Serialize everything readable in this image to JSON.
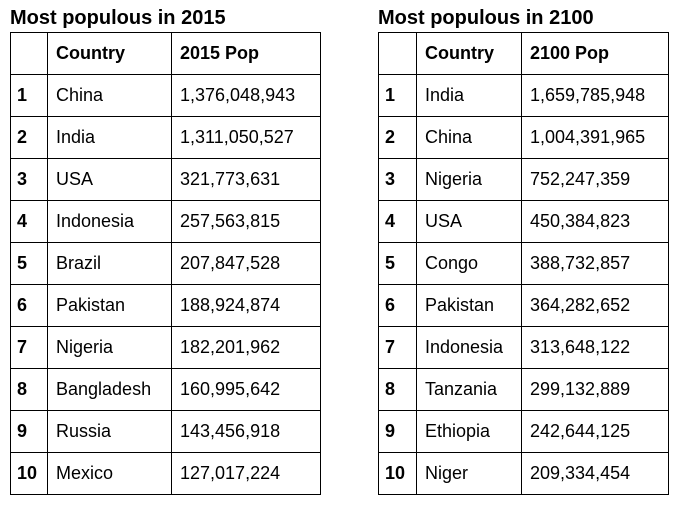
{
  "chart_data": [
    {
      "type": "table",
      "title": "Most populous in 2015",
      "columns": [
        "",
        "Country",
        "2015 Pop"
      ],
      "rows": [
        [
          "1",
          "China",
          "1,376,048,943"
        ],
        [
          "2",
          "India",
          "1,311,050,527"
        ],
        [
          "3",
          "USA",
          "321,773,631"
        ],
        [
          "4",
          "Indonesia",
          "257,563,815"
        ],
        [
          "5",
          "Brazil",
          "207,847,528"
        ],
        [
          "6",
          "Pakistan",
          "188,924,874"
        ],
        [
          "7",
          "Nigeria",
          "182,201,962"
        ],
        [
          "8",
          "Bangladesh",
          "160,995,642"
        ],
        [
          "9",
          "Russia",
          "143,456,918"
        ],
        [
          "10",
          "Mexico",
          "127,017,224"
        ]
      ]
    },
    {
      "type": "table",
      "title": "Most populous in 2100",
      "columns": [
        "",
        "Country",
        "2100 Pop"
      ],
      "rows": [
        [
          "1",
          "India",
          "1,659,785,948"
        ],
        [
          "2",
          "China",
          "1,004,391,965"
        ],
        [
          "3",
          "Nigeria",
          "752,247,359"
        ],
        [
          "4",
          "USA",
          "450,384,823"
        ],
        [
          "5",
          "Congo",
          "388,732,857"
        ],
        [
          "6",
          "Pakistan",
          "364,282,652"
        ],
        [
          "7",
          "Indonesia",
          "313,648,122"
        ],
        [
          "8",
          "Tanzania",
          "299,132,889"
        ],
        [
          "9",
          "Ethiopia",
          "242,644,125"
        ],
        [
          "10",
          "Niger",
          "209,334,454"
        ]
      ]
    }
  ]
}
